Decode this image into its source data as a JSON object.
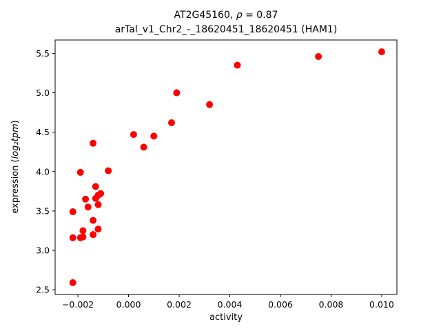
{
  "chart_data": {
    "type": "scatter",
    "title_line1_prefix": "AT2G45160, ",
    "title_line1_rho": "ρ",
    "title_line1_rest": " = 0.87",
    "title_line2": "arTal_v1_Chr2_-_18620451_18620451 (HAM1)",
    "xlabel": "activity",
    "ylabel_prefix": "expression (",
    "ylabel_math": "log₂tpm",
    "ylabel_suffix": ")",
    "marker_color": "#ff0000",
    "marker_radius_px": 5,
    "axes_color": "#000000",
    "grid": "off",
    "legend": "none",
    "xlim": [
      -0.0029,
      0.0106
    ],
    "ylim": [
      2.44,
      5.67
    ],
    "x_ticks": [
      -0.002,
      0.0,
      0.002,
      0.004,
      0.006,
      0.008,
      0.01
    ],
    "x_tick_labels": [
      "−0.002",
      "0.000",
      "0.002",
      "0.004",
      "0.006",
      "0.008",
      "0.010"
    ],
    "y_ticks": [
      2.5,
      3.0,
      3.5,
      4.0,
      4.5,
      5.0,
      5.5
    ],
    "y_tick_labels": [
      "2.5",
      "3.0",
      "3.5",
      "4.0",
      "4.5",
      "5.0",
      "5.5"
    ],
    "points": [
      [
        -0.0022,
        3.49
      ],
      [
        -0.0022,
        2.59
      ],
      [
        -0.0022,
        3.16
      ],
      [
        -0.0019,
        3.16
      ],
      [
        -0.0019,
        3.99
      ],
      [
        -0.0018,
        3.25
      ],
      [
        -0.0018,
        3.17
      ],
      [
        -0.0017,
        3.65
      ],
      [
        -0.0016,
        3.55
      ],
      [
        -0.0014,
        4.36
      ],
      [
        -0.0014,
        3.38
      ],
      [
        -0.0014,
        3.2
      ],
      [
        -0.0013,
        3.81
      ],
      [
        -0.0013,
        3.66
      ],
      [
        -0.0012,
        3.58
      ],
      [
        -0.0012,
        3.7
      ],
      [
        -0.0012,
        3.27
      ],
      [
        -0.0011,
        3.72
      ],
      [
        -0.0008,
        4.01
      ],
      [
        0.0002,
        4.47
      ],
      [
        0.0006,
        4.31
      ],
      [
        0.001,
        4.45
      ],
      [
        0.0017,
        4.62
      ],
      [
        0.0019,
        5.0
      ],
      [
        0.0032,
        4.85
      ],
      [
        0.0043,
        5.35
      ],
      [
        0.0075,
        5.46
      ],
      [
        0.01,
        5.52
      ]
    ]
  }
}
